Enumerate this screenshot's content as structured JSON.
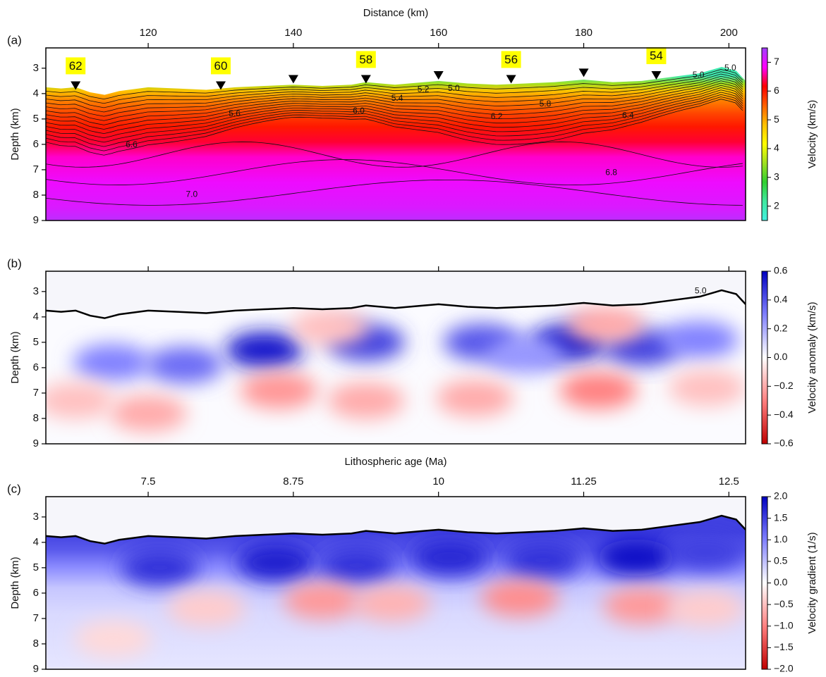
{
  "chart_data": [
    {
      "type": "heatmap",
      "panel_label": "(a)",
      "xlabel": "Distance (km)",
      "ylabel": "Depth (km)",
      "xlim": [
        105.9,
        202.3
      ],
      "xticks": [
        120,
        140,
        160,
        180,
        200
      ],
      "xtick_labels": true,
      "ylim": [
        9,
        2.2
      ],
      "yticks": [
        3,
        4,
        5,
        6,
        7,
        8,
        9
      ],
      "colorbar": {
        "label": "Velocity (km/s)",
        "clim": [
          1.5,
          7.5
        ],
        "ticks": [
          2,
          3,
          4,
          5,
          6,
          7
        ],
        "colormap": [
          "#40f0e0",
          "#40e8a0",
          "#30d030",
          "#a0e020",
          "#ffff00",
          "#ffc000",
          "#ff6000",
          "#ff0000",
          "#ff00ff",
          "#a040ff"
        ]
      },
      "profile": {
        "depth": [
          3.3,
          3.6,
          3.9,
          4.3,
          4.8,
          5.3,
          5.9,
          6.5,
          7.5,
          8.5,
          9
        ],
        "values": [
          2,
          3.5,
          4.8,
          5.3,
          5.7,
          6.0,
          6.3,
          6.7,
          6.95,
          7.1,
          7.3
        ]
      },
      "seafloor": {
        "x": [
          105.9,
          108,
          110,
          112,
          114,
          116,
          120,
          124,
          128,
          132,
          136,
          140,
          144,
          148,
          150,
          154,
          158,
          160,
          164,
          168,
          172,
          176,
          180,
          184,
          188,
          192,
          196,
          199,
          201,
          202.3
        ],
        "y": [
          3.75,
          3.8,
          3.75,
          3.95,
          4.05,
          3.9,
          3.75,
          3.8,
          3.85,
          3.75,
          3.7,
          3.65,
          3.7,
          3.65,
          3.55,
          3.65,
          3.55,
          3.5,
          3.6,
          3.65,
          3.6,
          3.55,
          3.45,
          3.55,
          3.5,
          3.35,
          3.2,
          2.95,
          3.1,
          3.5
        ]
      },
      "stations": {
        "x": [
          110,
          130,
          140,
          150,
          160,
          170,
          180,
          190
        ],
        "y": [
          3.85,
          3.85,
          3.6,
          3.6,
          3.45,
          3.6,
          3.35,
          3.45
        ],
        "labels": [
          62,
          60,
          null,
          58,
          null,
          56,
          null,
          54
        ]
      },
      "annotations": [
        {
          "text": "5.0",
          "x": 162.1,
          "y": 3.81
        },
        {
          "text": "5.2",
          "x": 157.9,
          "y": 3.84
        },
        {
          "text": "5.4",
          "x": 154.3,
          "y": 4.2
        },
        {
          "text": "5.6",
          "x": 131.9,
          "y": 4.81
        },
        {
          "text": "6.0",
          "x": 149.0,
          "y": 4.7
        },
        {
          "text": "5.8",
          "x": 174.7,
          "y": 4.42
        },
        {
          "text": "6.2",
          "x": 168.0,
          "y": 4.92
        },
        {
          "text": "6.4",
          "x": 186.1,
          "y": 4.87
        },
        {
          "text": "6.6",
          "x": 117.7,
          "y": 6.03
        },
        {
          "text": "6.8",
          "x": 183.8,
          "y": 7.12
        },
        {
          "text": "7.0",
          "x": 126.0,
          "y": 7.98
        },
        {
          "text": "5.0",
          "x": 195.8,
          "y": 3.28
        },
        {
          "text": "5.0",
          "x": 200.2,
          "y": 3.0
        }
      ]
    },
    {
      "type": "heatmap",
      "panel_label": "(b)",
      "ylabel": "Depth (km)",
      "xlim": [
        105.9,
        202.3
      ],
      "xticks": [
        120,
        140,
        160,
        180,
        200
      ],
      "xtick_labels": false,
      "ylim": [
        9,
        2.2
      ],
      "yticks": [
        3,
        4,
        5,
        6,
        7,
        8,
        9
      ],
      "colorbar": {
        "label": "Velocity anomaly (km/s)",
        "clim": [
          -0.6,
          0.6
        ],
        "ticks": [
          {
            "value": -0.6,
            "label": "−0.6"
          },
          {
            "value": -0.4,
            "label": "−0.4"
          },
          {
            "value": -0.2,
            "label": "−0.2"
          },
          {
            "value": 0,
            "label": "0.0"
          },
          0.2,
          0.4,
          0.6
        ],
        "colormap": [
          "#c00000",
          "#ff8080",
          "#ffffff",
          "#8080ff",
          "#0000c0"
        ]
      },
      "seafloor": {
        "x": [
          105.9,
          108,
          110,
          112,
          114,
          116,
          120,
          124,
          128,
          132,
          136,
          140,
          144,
          148,
          150,
          154,
          158,
          160,
          164,
          168,
          172,
          176,
          180,
          184,
          188,
          192,
          196,
          199,
          201,
          202.3
        ],
        "y": [
          3.75,
          3.8,
          3.75,
          3.95,
          4.05,
          3.9,
          3.75,
          3.8,
          3.85,
          3.75,
          3.7,
          3.65,
          3.7,
          3.65,
          3.55,
          3.65,
          3.55,
          3.5,
          3.6,
          3.65,
          3.6,
          3.55,
          3.45,
          3.55,
          3.5,
          3.35,
          3.2,
          2.95,
          3.1,
          3.5
        ]
      },
      "anomalies": [
        {
          "x": 136,
          "y": 5.3,
          "value": 0.55
        },
        {
          "x": 150,
          "y": 5.0,
          "value": 0.45
        },
        {
          "x": 166,
          "y": 5.0,
          "value": 0.4
        },
        {
          "x": 178,
          "y": 5.0,
          "value": 0.55
        },
        {
          "x": 188,
          "y": 5.2,
          "value": 0.45
        },
        {
          "x": 196,
          "y": 4.9,
          "value": 0.3
        },
        {
          "x": 115,
          "y": 5.8,
          "value": 0.3
        },
        {
          "x": 125,
          "y": 5.9,
          "value": 0.35
        },
        {
          "x": 172,
          "y": 5.5,
          "value": 0.25
        },
        {
          "x": 138,
          "y": 6.9,
          "value": -0.25
        },
        {
          "x": 150,
          "y": 7.3,
          "value": -0.2
        },
        {
          "x": 165,
          "y": 7.2,
          "value": -0.2
        },
        {
          "x": 182,
          "y": 6.9,
          "value": -0.3
        },
        {
          "x": 120,
          "y": 7.8,
          "value": -0.2
        },
        {
          "x": 145,
          "y": 4.4,
          "value": -0.15
        },
        {
          "x": 183,
          "y": 4.3,
          "value": -0.2
        },
        {
          "x": 197,
          "y": 6.8,
          "value": -0.15
        },
        {
          "x": 110,
          "y": 7.3,
          "value": -0.15
        }
      ],
      "annotations": [
        {
          "text": "5.0",
          "x": 196.1,
          "y": 2.98
        }
      ]
    },
    {
      "type": "heatmap",
      "panel_label": "(c)",
      "xlabel": "Lithospheric age (Ma)",
      "ylabel": "Depth (km)",
      "xlim": [
        6.619,
        12.644
      ],
      "xticks": [
        7.5,
        8.75,
        10,
        11.25,
        12.5
      ],
      "xtick_labels": true,
      "ylim": [
        9,
        2.2
      ],
      "yticks": [
        3,
        4,
        5,
        6,
        7,
        8,
        9
      ],
      "colorbar": {
        "label": "Velocity gradient (1/s)",
        "clim": [
          -2,
          2
        ],
        "ticks": [
          {
            "value": -2,
            "label": "−2.0"
          },
          {
            "value": -1.5,
            "label": "−1.5"
          },
          {
            "value": -1,
            "label": "−1.0"
          },
          {
            "value": -0.5,
            "label": "−0.5"
          },
          {
            "value": 0,
            "label": "0.0"
          },
          0.5,
          {
            "value": 1,
            "label": "1.0"
          },
          1.5,
          {
            "value": 2,
            "label": "2.0"
          }
        ],
        "colormap": [
          "#c00000",
          "#ff8080",
          "#ffffff",
          "#8080ff",
          "#0000c0"
        ]
      },
      "profile": {
        "depth": [
          3.6,
          4.3,
          5.0,
          5.8,
          6.8,
          9
        ],
        "values": [
          1.5,
          1.3,
          0.9,
          0.45,
          0.3,
          0.2
        ]
      },
      "seafloor": {
        "x": [
          6.619,
          6.75,
          6.875,
          7.0,
          7.125,
          7.25,
          7.5,
          7.75,
          8.0,
          8.25,
          8.5,
          8.75,
          9.0,
          9.25,
          9.375,
          9.625,
          9.875,
          10.0,
          10.25,
          10.5,
          10.75,
          11.0,
          11.25,
          11.5,
          11.75,
          12.0,
          12.25,
          12.4375,
          12.5625,
          12.644
        ],
        "y": [
          3.75,
          3.8,
          3.75,
          3.95,
          4.05,
          3.9,
          3.75,
          3.8,
          3.85,
          3.75,
          3.7,
          3.65,
          3.7,
          3.65,
          3.55,
          3.65,
          3.55,
          3.5,
          3.6,
          3.65,
          3.6,
          3.55,
          3.45,
          3.55,
          3.5,
          3.35,
          3.2,
          2.95,
          3.1,
          3.5
        ]
      },
      "anomalies": [
        {
          "x": 7.6,
          "y": 5.0,
          "value": 1.6
        },
        {
          "x": 8.6,
          "y": 4.8,
          "value": 1.8
        },
        {
          "x": 9.3,
          "y": 4.9,
          "value": 1.6
        },
        {
          "x": 10.1,
          "y": 4.6,
          "value": 1.7
        },
        {
          "x": 10.9,
          "y": 4.7,
          "value": 1.6
        },
        {
          "x": 11.7,
          "y": 4.6,
          "value": 1.9
        },
        {
          "x": 12.3,
          "y": 4.4,
          "value": 1.5
        },
        {
          "x": 9.0,
          "y": 6.3,
          "value": -0.8
        },
        {
          "x": 10.7,
          "y": 6.2,
          "value": -0.9
        },
        {
          "x": 9.6,
          "y": 6.4,
          "value": -0.6
        },
        {
          "x": 11.75,
          "y": 6.5,
          "value": -0.8
        },
        {
          "x": 8.0,
          "y": 6.6,
          "value": -0.4
        },
        {
          "x": 12.3,
          "y": 6.6,
          "value": -0.4
        },
        {
          "x": 7.2,
          "y": 7.8,
          "value": -0.3
        }
      ]
    }
  ]
}
